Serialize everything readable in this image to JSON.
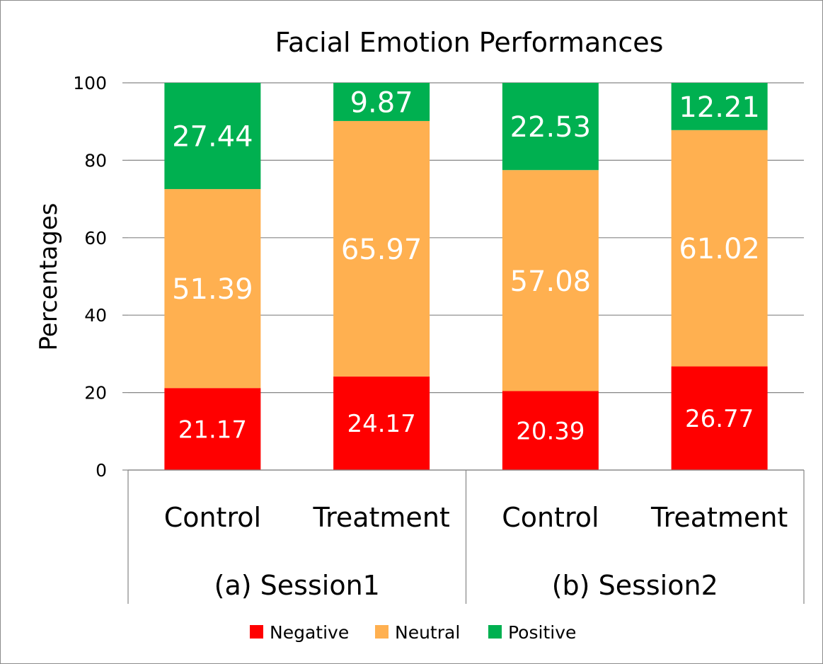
{
  "chart_data": {
    "type": "bar",
    "stacked": true,
    "title": "Facial Emotion Performances",
    "xlabel": "",
    "ylabel": "Percentages",
    "ylim": [
      0,
      100
    ],
    "yticks": [
      0,
      20,
      40,
      60,
      80,
      100
    ],
    "grid": true,
    "groups": [
      {
        "label": "(a) Session1",
        "categories": [
          "Control",
          "Treatment"
        ]
      },
      {
        "label": "(b) Session2",
        "categories": [
          "Control",
          "Treatment"
        ]
      }
    ],
    "categories": [
      "Control",
      "Treatment",
      "Control",
      "Treatment"
    ],
    "series": [
      {
        "name": "Negative",
        "color": "#ff0000",
        "values": [
          21.17,
          24.17,
          20.39,
          26.77
        ],
        "labels": [
          "21.17",
          "24.17",
          "20.39",
          "26.77"
        ]
      },
      {
        "name": "Neutral",
        "color": "#ffb050",
        "values": [
          51.39,
          65.97,
          57.08,
          61.02
        ],
        "labels": [
          "51.39",
          "65.97",
          "57.08",
          "61.02"
        ]
      },
      {
        "name": "Positive",
        "color": "#00b050",
        "values": [
          27.44,
          9.87,
          22.53,
          12.21
        ],
        "labels": [
          "27.44",
          "9.87",
          "22.53",
          "12.21"
        ]
      }
    ],
    "legend": {
      "position": "bottom",
      "entries": [
        "Negative",
        "Neutral",
        "Positive"
      ]
    }
  }
}
